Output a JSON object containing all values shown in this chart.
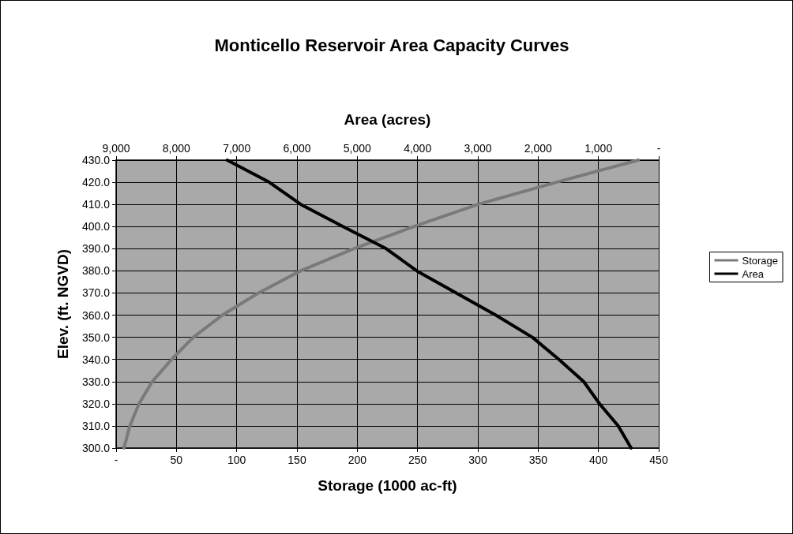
{
  "chart_data": {
    "type": "line",
    "title": "Monticello Reservoir Area Capacity Curves",
    "xlabel": "Storage (1000 ac-ft)",
    "x2label": "Area (acres)",
    "ylabel": "Elev. (ft. NGVD)",
    "xlim": [
      0,
      450
    ],
    "xticks": [
      {
        "value": 0,
        "label": "-"
      },
      50,
      100,
      150,
      200,
      250,
      300,
      350,
      400,
      450
    ],
    "x2lim": [
      9000,
      0
    ],
    "x2ticks": [
      {
        "value": 9000,
        "label": "9,000"
      },
      {
        "value": 8000,
        "label": "8,000"
      },
      {
        "value": 7000,
        "label": "7,000"
      },
      {
        "value": 6000,
        "label": "6,000"
      },
      {
        "value": 5000,
        "label": "5,000"
      },
      {
        "value": 4000,
        "label": "4,000"
      },
      {
        "value": 3000,
        "label": "3,000"
      },
      {
        "value": 2000,
        "label": "2,000"
      },
      {
        "value": 1000,
        "label": "1,000"
      },
      {
        "value": 0,
        "label": "-"
      }
    ],
    "ylim": [
      300,
      430
    ],
    "yticks": [
      {
        "value": 300,
        "label": "300.0"
      },
      {
        "value": 310,
        "label": "310.0"
      },
      {
        "value": 320,
        "label": "320.0"
      },
      {
        "value": 330,
        "label": "330.0"
      },
      {
        "value": 340,
        "label": "340.0"
      },
      {
        "value": 350,
        "label": "350.0"
      },
      {
        "value": 360,
        "label": "360.0"
      },
      {
        "value": 370,
        "label": "370.0"
      },
      {
        "value": 380,
        "label": "380.0"
      },
      {
        "value": 390,
        "label": "390.0"
      },
      {
        "value": 400,
        "label": "400.0"
      },
      {
        "value": 410,
        "label": "410.0"
      },
      {
        "value": 420,
        "label": "420.0"
      },
      {
        "value": 430,
        "label": "430.0"
      }
    ],
    "grid": true,
    "legend": "right",
    "marker": "none",
    "line_style": "solid",
    "series": [
      {
        "name": "Storage",
        "color": "#7a7a7a",
        "x": [
          6.5,
          11.4,
          19,
          30,
          46,
          64,
          88,
          118,
          153,
          197,
          247,
          300,
          365,
          433
        ],
        "values": [
          300,
          310,
          320,
          330,
          340,
          350,
          360,
          370,
          380,
          390,
          400,
          410,
          420,
          430
        ]
      },
      {
        "name": "Area",
        "color": "#000000",
        "axis": "x2",
        "x": [
          458,
          672,
          982,
          1245,
          1655,
          2096,
          2703,
          3358,
          4013,
          4520,
          5236,
          5935,
          6459,
          7157
        ],
        "values": [
          300,
          310,
          320,
          330,
          340,
          350,
          360,
          370,
          380,
          390,
          400,
          410,
          420,
          430
        ]
      }
    ]
  }
}
